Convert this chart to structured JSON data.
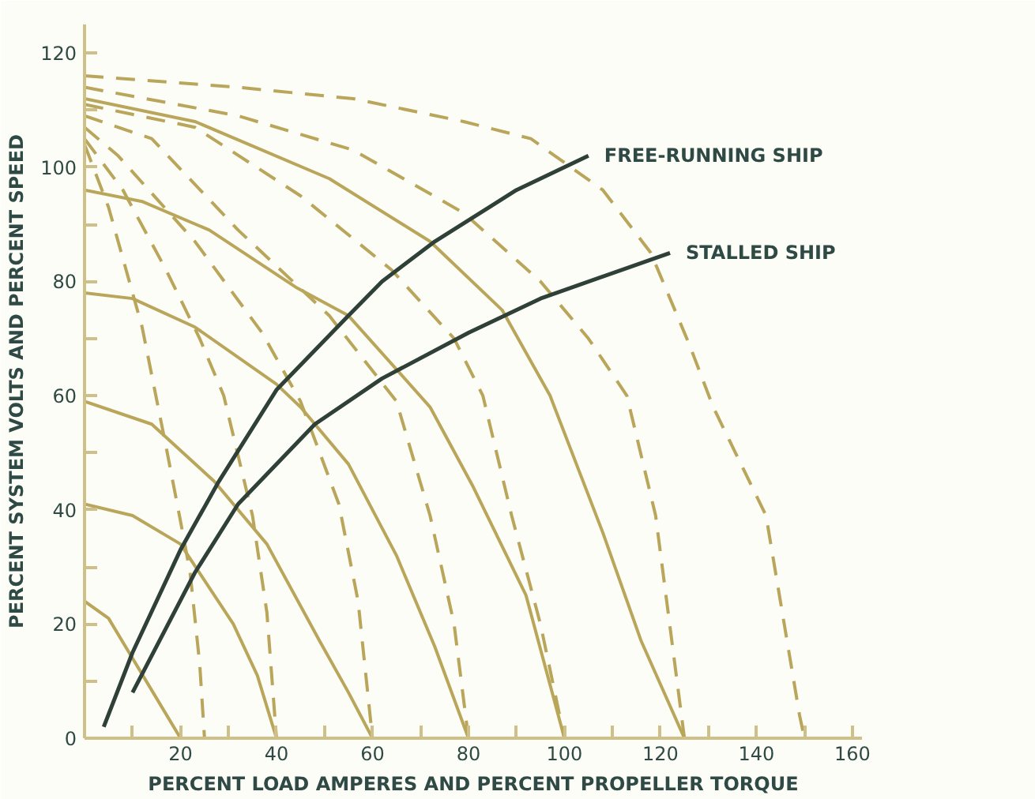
{
  "chart_data": {
    "type": "line",
    "xlabel": "PERCENT LOAD AMPERES AND PERCENT PROPELLER TORQUE",
    "ylabel": "PERCENT SYSTEM VOLTS AND PERCENT SPEED",
    "xlim": [
      0,
      162
    ],
    "ylim": [
      0,
      125
    ],
    "xticks": [
      {
        "value": 10,
        "label": null
      },
      20,
      {
        "value": 30,
        "label": null
      },
      40,
      {
        "value": 50,
        "label": null
      },
      60,
      {
        "value": 70,
        "label": null
      },
      80,
      {
        "value": 90,
        "label": null
      },
      100,
      {
        "value": 110,
        "label": null
      },
      120,
      {
        "value": 130,
        "label": null
      },
      140,
      {
        "value": 150,
        "label": null
      },
      160
    ],
    "yticks": [
      0,
      {
        "value": 10,
        "label": null
      },
      20,
      {
        "value": 30,
        "label": null
      },
      40,
      {
        "value": 50,
        "label": null
      },
      60,
      {
        "value": 70,
        "label": null
      },
      80,
      {
        "value": 90,
        "label": null
      },
      100,
      {
        "value": 110,
        "label": null
      },
      120
    ],
    "grid": false,
    "legend": false,
    "marker": "none",
    "series": [
      {
        "color": "#b9a65a",
        "line_style": "solid",
        "x": [
          0,
          5,
          10,
          15,
          20
        ],
        "values": [
          24,
          21,
          14,
          7,
          0
        ]
      },
      {
        "color": "#b9a65a",
        "line_style": "solid",
        "x": [
          0,
          10,
          20,
          31,
          36,
          40
        ],
        "values": [
          41,
          39,
          34,
          20,
          11,
          0
        ]
      },
      {
        "color": "#b9a65a",
        "line_style": "solid",
        "x": [
          0,
          14,
          27,
          38,
          49,
          55,
          60
        ],
        "values": [
          59,
          55,
          45,
          34,
          17,
          8,
          0
        ]
      },
      {
        "color": "#b9a65a",
        "line_style": "solid",
        "x": [
          0,
          10,
          23,
          40,
          45,
          55,
          65,
          73,
          80
        ],
        "values": [
          78,
          77,
          72,
          62,
          58,
          48,
          32,
          16,
          0
        ]
      },
      {
        "color": "#b9a65a",
        "line_style": "solid",
        "x": [
          0,
          12,
          26,
          44,
          55,
          72,
          81,
          92,
          100
        ],
        "values": [
          96,
          94,
          89,
          79,
          74,
          58,
          44,
          25,
          0
        ]
      },
      {
        "color": "#b9a65a",
        "line_style": "solid",
        "x": [
          0,
          23,
          51,
          72,
          87,
          97,
          108,
          116,
          125
        ],
        "values": [
          112,
          108,
          98,
          87,
          75,
          60,
          36,
          17,
          0
        ]
      },
      {
        "color": "#b9a65a",
        "line_style": "dashed",
        "x": [
          0,
          5,
          12,
          17,
          20,
          22,
          24,
          25
        ],
        "values": [
          104,
          93,
          72,
          51,
          38,
          29,
          13,
          0
        ]
      },
      {
        "color": "#b9a65a",
        "line_style": "dashed",
        "x": [
          0,
          8,
          17,
          24,
          29,
          35,
          38,
          40
        ],
        "values": [
          105,
          96,
          82,
          70,
          60,
          39,
          22,
          0
        ]
      },
      {
        "color": "#b9a65a",
        "line_style": "dashed",
        "x": [
          0,
          7,
          23,
          37,
          45,
          53,
          57,
          60
        ],
        "values": [
          107,
          102,
          87,
          71,
          59,
          41,
          24,
          0
        ]
      },
      {
        "color": "#b9a65a",
        "line_style": "dashed",
        "x": [
          0,
          14,
          32,
          51,
          65,
          72,
          77,
          80
        ],
        "values": [
          109,
          105,
          89,
          74,
          59,
          39,
          20,
          0
        ]
      },
      {
        "color": "#b9a65a",
        "line_style": "dashed",
        "x": [
          0,
          23,
          45,
          64,
          77,
          83,
          89,
          95,
          100
        ],
        "values": [
          111,
          107,
          95,
          82,
          70,
          60,
          39,
          20,
          0
        ]
      },
      {
        "color": "#b9a65a",
        "line_style": "dashed",
        "x": [
          0,
          32,
          56,
          79,
          95,
          105,
          113,
          119,
          125
        ],
        "values": [
          114,
          109,
          103,
          92,
          80,
          70,
          60,
          39,
          0
        ]
      },
      {
        "color": "#b9a65a",
        "line_style": "dashed",
        "x": [
          0,
          32,
          56,
          79,
          93,
          108,
          118,
          126,
          131,
          142,
          149,
          150
        ],
        "values": [
          116,
          114,
          112,
          108,
          105,
          96,
          85,
          69,
          58,
          39,
          4,
          0
        ]
      },
      {
        "name": "FREE-RUNNING SHIP",
        "color": "#2e4038",
        "line_style": "solid",
        "x": [
          4,
          10,
          20,
          28,
          40,
          55,
          62,
          73,
          90,
          105
        ],
        "values": [
          2,
          15,
          33,
          45,
          61,
          74,
          80,
          87,
          96,
          102
        ]
      },
      {
        "name": "STALLED SHIP",
        "color": "#2e4038",
        "line_style": "solid",
        "x": [
          10,
          23,
          32,
          48,
          62,
          80,
          95,
          122
        ],
        "values": [
          8,
          29,
          41,
          55,
          63,
          71,
          77,
          85
        ]
      }
    ]
  }
}
